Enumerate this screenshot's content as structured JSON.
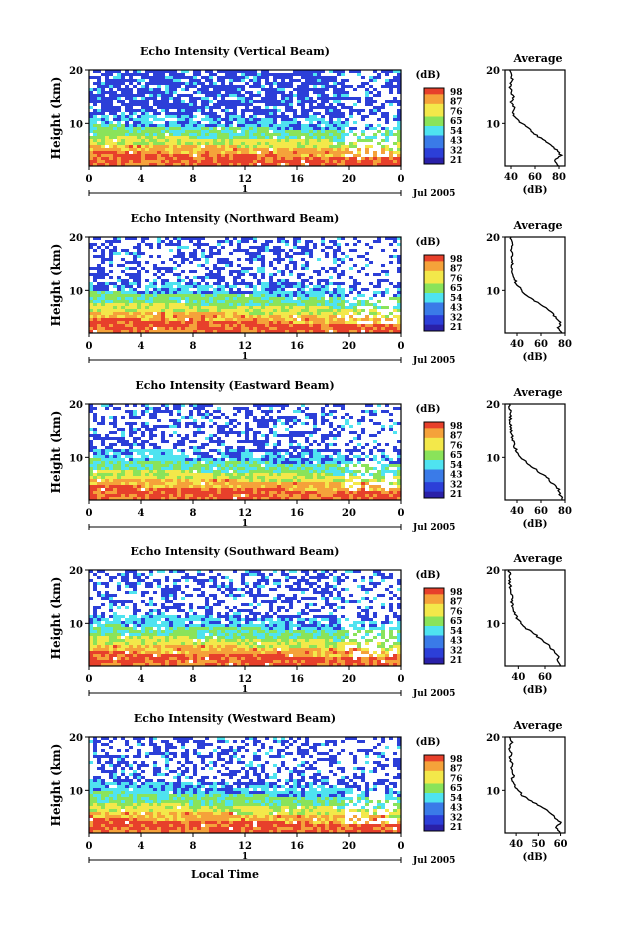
{
  "chart_data": {
    "type": "heatmap",
    "x_axis_ticks": [
      "0",
      "4",
      "8",
      "12",
      "16",
      "20",
      "0"
    ],
    "day_marker": "1",
    "date_label": "Jul 2005",
    "xlabel": "Local Time",
    "ylabel": "Height (km)",
    "y_ticks": [
      "20",
      "10"
    ],
    "y_range_km": [
      2,
      20
    ],
    "time_range_h": [
      0,
      24
    ],
    "colorbar_unit": "(dB)",
    "colors": {
      "blue": "#2c3fd8",
      "cyan": "#4fe3f0",
      "green": "#8ae35a",
      "yellow": "#f3e84a",
      "orange": "#f5a23a",
      "red": "#e7402b"
    },
    "average_title": "Average",
    "average_xlabel": "(dB)",
    "panels": [
      {
        "title": "Echo Intensity (Vertical Beam)",
        "colorbar_labels": [
          "98",
          "87",
          "76",
          "65",
          "54",
          "43",
          "32",
          "21"
        ],
        "avg_x_ticks": [
          "40",
          "60",
          "80"
        ],
        "avg_xlim": [
          35,
          85
        ],
        "avg_profile": [
          [
            2,
            80
          ],
          [
            3,
            76
          ],
          [
            4,
            82
          ],
          [
            5,
            78
          ],
          [
            6,
            73
          ],
          [
            7,
            66
          ],
          [
            8,
            60
          ],
          [
            9,
            55
          ],
          [
            10,
            49
          ],
          [
            11,
            44
          ],
          [
            12,
            41
          ],
          [
            13,
            43
          ],
          [
            14,
            40
          ],
          [
            15,
            42
          ],
          [
            16,
            40
          ],
          [
            17,
            39
          ],
          [
            18,
            41
          ],
          [
            19,
            40
          ],
          [
            20,
            39
          ]
        ]
      },
      {
        "title": "Echo Intensity (Northward Beam)",
        "colorbar_labels": [
          "98",
          "87",
          "76",
          "65",
          "54",
          "43",
          "32",
          "21"
        ],
        "avg_x_ticks": [
          "40",
          "60",
          "80"
        ],
        "avg_xlim": [
          30,
          80
        ],
        "avg_profile": [
          [
            2,
            78
          ],
          [
            3,
            74
          ],
          [
            4,
            77
          ],
          [
            5,
            72
          ],
          [
            6,
            68
          ],
          [
            7,
            62
          ],
          [
            8,
            55
          ],
          [
            9,
            48
          ],
          [
            10,
            44
          ],
          [
            11,
            40
          ],
          [
            12,
            38
          ],
          [
            13,
            37
          ],
          [
            14,
            36
          ],
          [
            15,
            36
          ],
          [
            16,
            35
          ],
          [
            17,
            36
          ],
          [
            18,
            35
          ],
          [
            19,
            36
          ],
          [
            20,
            35
          ]
        ]
      },
      {
        "title": "Echo Intensity (Eastward Beam)",
        "colorbar_labels": [
          "98",
          "87",
          "76",
          "65",
          "54",
          "43",
          "32",
          "21"
        ],
        "avg_x_ticks": [
          "40",
          "60",
          "80"
        ],
        "avg_xlim": [
          30,
          80
        ],
        "avg_profile": [
          [
            2,
            78
          ],
          [
            3,
            76
          ],
          [
            4,
            75
          ],
          [
            5,
            70
          ],
          [
            6,
            66
          ],
          [
            7,
            60
          ],
          [
            8,
            54
          ],
          [
            9,
            48
          ],
          [
            10,
            43
          ],
          [
            11,
            40
          ],
          [
            12,
            38
          ],
          [
            13,
            37
          ],
          [
            14,
            36
          ],
          [
            15,
            35
          ],
          [
            16,
            35
          ],
          [
            17,
            34
          ],
          [
            18,
            35
          ],
          [
            19,
            34
          ],
          [
            20,
            34
          ]
        ]
      },
      {
        "title": "Echo Intensity (Southward Beam)",
        "colorbar_labels": [
          "98",
          "87",
          "76",
          "65",
          "54",
          "43",
          "32",
          "21"
        ],
        "avg_x_ticks": [
          "40",
          "60"
        ],
        "avg_xlim": [
          30,
          75
        ],
        "avg_profile": [
          [
            2,
            72
          ],
          [
            3,
            69
          ],
          [
            4,
            70
          ],
          [
            5,
            66
          ],
          [
            6,
            62
          ],
          [
            7,
            57
          ],
          [
            8,
            52
          ],
          [
            9,
            46
          ],
          [
            10,
            42
          ],
          [
            11,
            39
          ],
          [
            12,
            37
          ],
          [
            13,
            36
          ],
          [
            14,
            35
          ],
          [
            15,
            35
          ],
          [
            16,
            34
          ],
          [
            17,
            34
          ],
          [
            18,
            33
          ],
          [
            19,
            34
          ],
          [
            20,
            33
          ]
        ]
      },
      {
        "title": "Echo Intensity (Westward Beam)",
        "colorbar_labels": [
          "98",
          "87",
          "76",
          "65",
          "54",
          "43",
          "32",
          "21"
        ],
        "avg_x_ticks": [
          "40",
          "50",
          "60"
        ],
        "avg_xlim": [
          35,
          62
        ],
        "avg_profile": [
          [
            2,
            60
          ],
          [
            3,
            58
          ],
          [
            4,
            60
          ],
          [
            5,
            57
          ],
          [
            6,
            55
          ],
          [
            7,
            51
          ],
          [
            8,
            47
          ],
          [
            9,
            43
          ],
          [
            10,
            41
          ],
          [
            11,
            39
          ],
          [
            12,
            38
          ],
          [
            13,
            39
          ],
          [
            14,
            38
          ],
          [
            15,
            38
          ],
          [
            16,
            37
          ],
          [
            17,
            38
          ],
          [
            18,
            37
          ],
          [
            19,
            38
          ],
          [
            20,
            37
          ]
        ]
      }
    ]
  }
}
